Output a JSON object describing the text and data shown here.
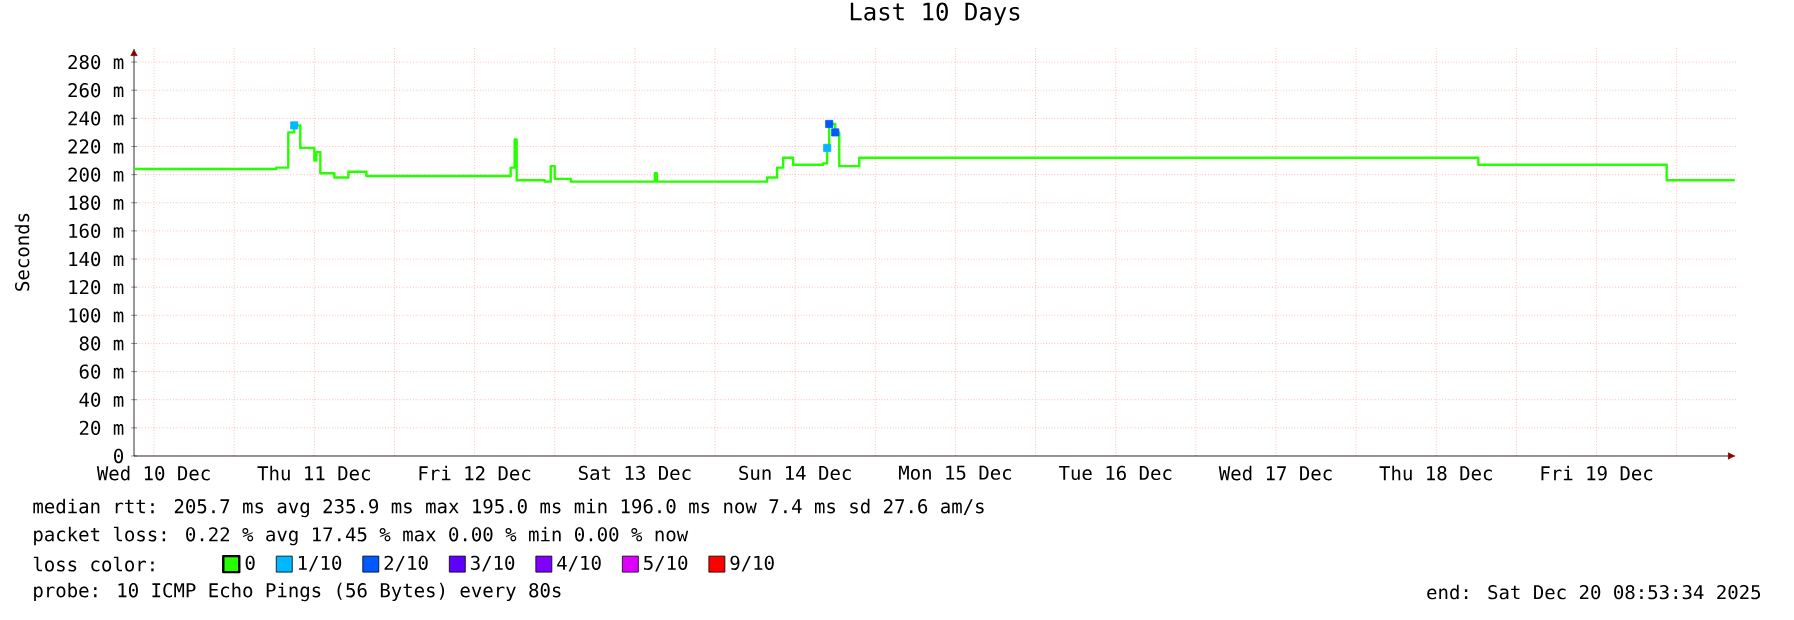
{
  "chart_data": {
    "type": "step",
    "title": "Last 10 Days",
    "ylabel": "Seconds",
    "legend_title": "loss color:",
    "xlim": [
      "2025-12-10T09:00",
      "2025-12-20T08:53"
    ],
    "xticks": [
      {
        "value": "2025-12-10T12:00",
        "label": "Wed 10 Dec"
      },
      {
        "value": "2025-12-11T00:00",
        "label": null
      },
      {
        "value": "2025-12-11T12:00",
        "label": "Thu 11 Dec"
      },
      {
        "value": "2025-12-12T00:00",
        "label": null
      },
      {
        "value": "2025-12-12T12:00",
        "label": "Fri 12 Dec"
      },
      {
        "value": "2025-12-13T00:00",
        "label": null
      },
      {
        "value": "2025-12-13T12:00",
        "label": "Sat 13 Dec"
      },
      {
        "value": "2025-12-14T00:00",
        "label": null
      },
      {
        "value": "2025-12-14T12:00",
        "label": "Sun 14 Dec"
      },
      {
        "value": "2025-12-15T00:00",
        "label": null
      },
      {
        "value": "2025-12-15T12:00",
        "label": "Mon 15 Dec"
      },
      {
        "value": "2025-12-16T00:00",
        "label": null
      },
      {
        "value": "2025-12-16T12:00",
        "label": "Tue 16 Dec"
      },
      {
        "value": "2025-12-17T00:00",
        "label": null
      },
      {
        "value": "2025-12-17T12:00",
        "label": "Wed 17 Dec"
      },
      {
        "value": "2025-12-18T00:00",
        "label": null
      },
      {
        "value": "2025-12-18T12:00",
        "label": "Thu 18 Dec"
      },
      {
        "value": "2025-12-19T00:00",
        "label": null
      },
      {
        "value": "2025-12-19T12:00",
        "label": "Fri 19 Dec"
      },
      {
        "value": "2025-12-20T00:00",
        "label": null
      }
    ],
    "ylim": [
      0,
      290
    ],
    "yticks": [
      0,
      {
        "value": 20,
        "label": "20 m"
      },
      {
        "value": 40,
        "label": "40 m"
      },
      {
        "value": 60,
        "label": "60 m"
      },
      {
        "value": 80,
        "label": "80 m"
      },
      {
        "value": 100,
        "label": "100 m"
      },
      {
        "value": 120,
        "label": "120 m"
      },
      {
        "value": 140,
        "label": "140 m"
      },
      {
        "value": 160,
        "label": "160 m"
      },
      {
        "value": 180,
        "label": "180 m"
      },
      {
        "value": 200,
        "label": "200 m"
      },
      {
        "value": 220,
        "label": "220 m"
      },
      {
        "value": 240,
        "label": "240 m"
      },
      {
        "value": 260,
        "label": "260 m"
      },
      {
        "value": 280,
        "label": "280 m"
      }
    ],
    "grid": true,
    "legend": "bottom",
    "series": [
      {
        "name": "0",
        "color": "#26ff00",
        "x": [
          "2025-12-10T09:00",
          "2025-12-11T06:18",
          "2025-12-11T08:06",
          "2025-12-11T09:00",
          "2025-12-11T09:54",
          "2025-12-11T12:00",
          "2025-12-11T12:18",
          "2025-12-11T12:54",
          "2025-12-11T15:00",
          "2025-12-11T17:06",
          "2025-12-11T19:48",
          "2025-12-12T17:24",
          "2025-12-12T18:00",
          "2025-12-12T18:18",
          "2025-12-12T22:30",
          "2025-12-12T23:24",
          "2025-12-13T00:00",
          "2025-12-13T02:24",
          "2025-12-13T15:00",
          "2025-12-13T15:18",
          "2025-12-14T07:48",
          "2025-12-14T09:18",
          "2025-12-14T10:12",
          "2025-12-14T11:42",
          "2025-12-14T16:12",
          "2025-12-14T16:48",
          "2025-12-14T17:06",
          "2025-12-14T18:00",
          "2025-12-14T18:36",
          "2025-12-14T21:36",
          "2025-12-18T18:18",
          "2025-12-19T22:30",
          "2025-12-20T08:42"
        ],
        "values": [
          204,
          205,
          230,
          235,
          219,
          210,
          216,
          201,
          198,
          202,
          199,
          205,
          225,
          196,
          195,
          206,
          197,
          195,
          201,
          195,
          198,
          205,
          212,
          207,
          208,
          219,
          236,
          230,
          206,
          212,
          207,
          196,
          196
        ]
      },
      {
        "name": "1/10",
        "color": "#00b8ff",
        "type": "scatter",
        "marker": "square",
        "x": [
          "2025-12-11T09:00",
          "2025-12-14T16:48"
        ],
        "values": [
          235,
          219
        ]
      },
      {
        "name": "2/10",
        "color": "#0059ff",
        "type": "scatter",
        "marker": "square",
        "x": [
          "2025-12-14T17:06",
          "2025-12-14T18:00"
        ],
        "values": [
          236,
          230
        ]
      },
      {
        "name": "3/10",
        "color": "#5e00ff",
        "type": "scatter",
        "marker": "square"
      },
      {
        "name": "4/10",
        "color": "#7e00ff",
        "type": "scatter",
        "marker": "square"
      },
      {
        "name": "5/10",
        "color": "#dd00ff",
        "type": "scatter",
        "marker": "square"
      },
      {
        "name": "9/10",
        "color": "#ff0000",
        "type": "scatter",
        "marker": "square"
      }
    ],
    "annotations": [
      "median rtt:  205.7 ms avg  235.9 ms max  195.0 ms min  196.0 ms now  7.4 ms sd  27.6   am/s",
      "packet loss: 0.22 % avg  17.45 % max  0.00 % min  0.00 % now",
      "probe:       10 ICMP Echo Pings (56 Bytes) every 80s",
      "end: Sat Dec 20 08:53:34 2025"
    ]
  }
}
